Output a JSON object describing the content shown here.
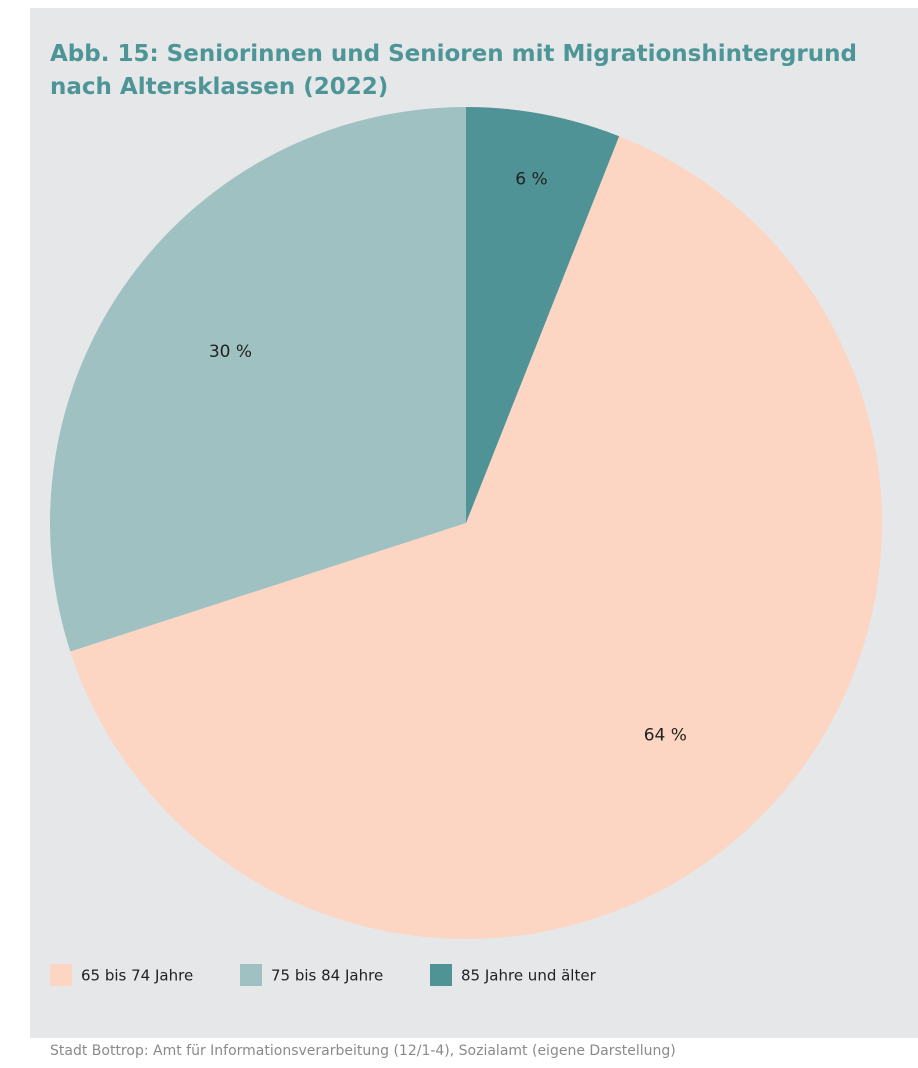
{
  "chart_data": {
    "type": "pie",
    "title": "Abb. 15: Seniorinnen und Senioren mit Migrationshintergrund nach Altersklassen (2022)",
    "categories": [
      "65 bis 74 Jahre",
      "75 bis 84 Jahre",
      "85 Jahre und älter"
    ],
    "values": [
      64,
      30,
      6
    ],
    "value_labels": [
      "64 %",
      "30 %",
      "6 %"
    ],
    "colors": [
      "#fcd5c3",
      "#a0c1c2",
      "#4f9396"
    ],
    "legend": "bottom",
    "source": "Stadt Bottrop: Amt für Informationsverarbeitung (12/1-4), Sozialamt (eigene Darstellung)"
  }
}
